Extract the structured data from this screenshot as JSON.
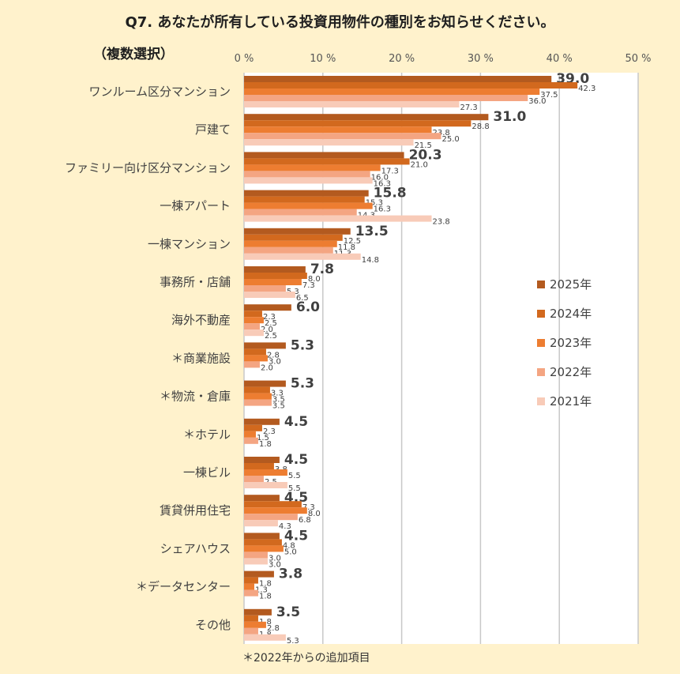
{
  "chart_data": {
    "type": "bar",
    "orientation": "horizontal",
    "title": "Q7. あなたが所有している投資用物件の種別をお知らせください。",
    "subtitle": "（複数選択）",
    "footnote": "＊2022年からの追加項目",
    "xlim": [
      0,
      50
    ],
    "xticks": [
      "0 %",
      "10 %",
      "20 %",
      "30 %",
      "40 %",
      "50 %"
    ],
    "grid": true,
    "legend_position": "right",
    "categories": [
      "ワンルーム区分マンション",
      "戸建て",
      "ファミリー向け区分マンション",
      "一棟アパート",
      "一棟マンション",
      "事務所・店舗",
      "海外不動産",
      "＊商業施設",
      "＊物流・倉庫",
      "＊ホテル",
      "一棟ビル",
      "賃貸併用住宅",
      "シェアハウス",
      "＊データセンター",
      "その他"
    ],
    "series": [
      {
        "name": "2025年",
        "color": "#b35a1f",
        "values": [
          39.0,
          31.0,
          20.3,
          15.8,
          13.5,
          7.8,
          6.0,
          5.3,
          5.3,
          4.5,
          4.5,
          4.5,
          4.5,
          3.8,
          3.5
        ],
        "labels": [
          "39.0",
          "31.0",
          "20.3",
          "15.8",
          "13.5",
          "7.8",
          "6.0",
          "5.3",
          "5.3",
          "4.5",
          "4.5",
          "4.5",
          "4.5",
          "3.8",
          "3.5"
        ]
      },
      {
        "name": "2024年",
        "color": "#d2691e",
        "values": [
          42.3,
          28.8,
          21.0,
          15.3,
          12.5,
          8.0,
          2.3,
          2.8,
          3.3,
          2.3,
          3.8,
          7.3,
          4.8,
          1.8,
          1.8
        ],
        "labels": [
          "42.3",
          "28.8",
          "21.0",
          "15.3",
          "12.5",
          "8.0",
          "2.3",
          "2.8",
          "3.3",
          "2.3",
          "3.8",
          "7.3",
          "4.8",
          "1.8",
          "1.8"
        ]
      },
      {
        "name": "2023年",
        "color": "#ed7d31",
        "values": [
          37.5,
          23.8,
          17.3,
          16.3,
          11.8,
          7.3,
          2.5,
          3.0,
          3.5,
          1.5,
          5.5,
          8.0,
          5.0,
          1.3,
          2.8
        ],
        "labels": [
          "37.5",
          "23.8",
          "17.3",
          "16.3",
          "11.8",
          "7.3",
          "2.5",
          "3.0",
          "3.5",
          "1.5",
          "5.5",
          "8.0",
          "5.0",
          "1.3",
          "2.8"
        ]
      },
      {
        "name": "2022年",
        "color": "#f4a582",
        "values": [
          36.0,
          25.0,
          16.0,
          14.3,
          11.3,
          5.3,
          2.0,
          2.0,
          3.5,
          1.8,
          2.5,
          6.8,
          3.0,
          1.8,
          1.8
        ],
        "labels": [
          "36.0",
          "25.0",
          "16.0",
          "14.3",
          "11.3",
          "5.3",
          "2.0",
          "2.0",
          "3.5",
          "1.8",
          "2.5",
          "6.8",
          "3.0",
          "1.8",
          "1.8"
        ]
      },
      {
        "name": "2021年",
        "color": "#f8cbb8",
        "values": [
          27.3,
          21.5,
          16.3,
          23.8,
          14.8,
          6.5,
          2.5,
          null,
          null,
          null,
          5.5,
          4.3,
          3.0,
          null,
          5.3
        ],
        "labels": [
          "27.3",
          "21.5",
          "16.3",
          "23.8",
          "14.8",
          "6.5",
          "2.5",
          "",
          "",
          "",
          "5.5",
          "4.3",
          "3.0",
          "",
          "5.3"
        ]
      }
    ]
  }
}
